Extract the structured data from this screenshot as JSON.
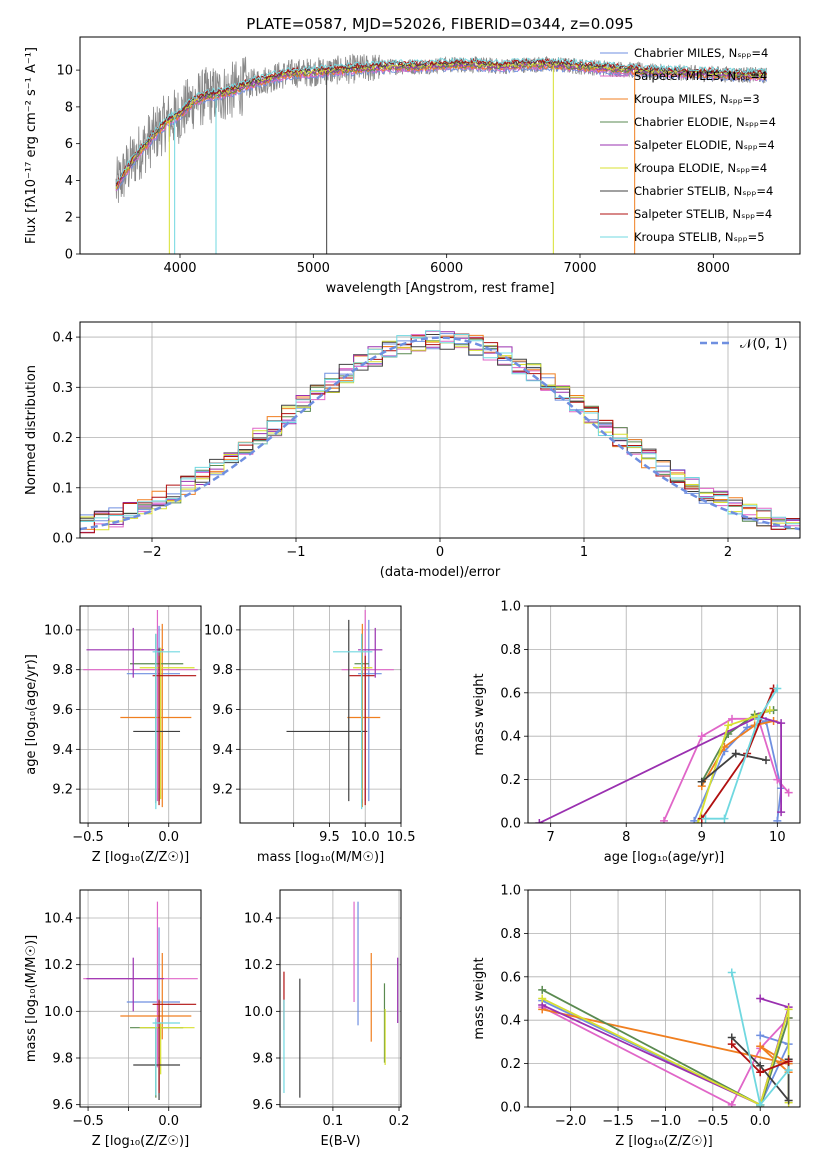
{
  "figure_title": "PLATE=0587, MJD=52026, FIBERID=0344, z=0.095",
  "colors": {
    "series": [
      "#6f8fe0",
      "#e066c8",
      "#f07f20",
      "#5a8a50",
      "#9a30b0",
      "#d8e030",
      "#404040",
      "#b01010",
      "#70d8e0"
    ],
    "normal_curve": "#6f8fe0",
    "grid": "#b0b0b0"
  },
  "chart_data": [
    {
      "id": "spectrum",
      "type": "line",
      "title": "PLATE=0587, MJD=52026, FIBERID=0344, z=0.095",
      "xlabel": "wavelength [Angstrom, rest frame]",
      "ylabel": "Flux [fλ10⁻¹⁷ erg cm⁻² s⁻¹ A⁻¹]",
      "xlim": [
        3250,
        8650
      ],
      "ylim": [
        0,
        11.8
      ],
      "xticks": [
        4000,
        5000,
        6000,
        7000,
        8000
      ],
      "yticks": [
        0,
        2,
        4,
        6,
        8,
        10
      ],
      "grid": false,
      "legend_position": "right",
      "legend": [
        "Chabrier MILES, Nₛₚₚ=4",
        "Salpeter MILES, Nₛₚₚ=4",
        "Kroupa MILES, Nₛₚₚ=3",
        "Chabrier ELODIE, Nₛₚₚ=4",
        "Salpeter ELODIE, Nₛₚₚ=4",
        "Kroupa ELODIE, Nₛₚₚ=4",
        "Chabrier STELIB, Nₛₚₚ=4",
        "Salpeter STELIB, Nₛₚₚ=4",
        "Kroupa STELIB, Nₛₚₚ=5"
      ],
      "data_range": [
        3520,
        8400
      ],
      "model_envelope": {
        "x": [
          3520,
          3600,
          3700,
          3800,
          3900,
          4000,
          4100,
          4200,
          4300,
          4400,
          4500,
          4600,
          4800,
          5000,
          5200,
          5400,
          5600,
          5800,
          6000,
          6200,
          6400,
          6600,
          6800,
          7000,
          7200,
          7400,
          7600,
          7800,
          8000,
          8200,
          8400
        ],
        "y": [
          3.6,
          4.6,
          5.6,
          6.4,
          7.2,
          7.6,
          8.3,
          8.6,
          8.7,
          8.9,
          9.2,
          9.4,
          9.8,
          9.9,
          10.0,
          10.1,
          10.2,
          10.2,
          10.3,
          10.3,
          10.2,
          10.3,
          10.3,
          10.2,
          10.1,
          10.0,
          9.9,
          9.85,
          9.8,
          9.75,
          9.7
        ]
      },
      "sharp_drops": [
        {
          "series": 8,
          "x": 3960
        },
        {
          "series": 5,
          "x": 3920
        },
        {
          "series": 8,
          "x": 4270
        },
        {
          "series": 6,
          "x": 5100
        },
        {
          "series": 5,
          "x": 6800
        },
        {
          "series": 2,
          "x": 7410
        }
      ]
    },
    {
      "id": "residuals",
      "type": "step",
      "xlabel": "(data-model)/error",
      "ylabel": "Normed distribution",
      "xlim": [
        -2.5,
        2.5
      ],
      "ylim": [
        0,
        0.43
      ],
      "xticks": [
        -2,
        -1,
        0,
        1,
        2
      ],
      "yticks": [
        0.0,
        0.1,
        0.2,
        0.3,
        0.4
      ],
      "grid": true,
      "legend_position": "top-right",
      "legend": [
        "𝒩(0, 1)"
      ],
      "bin_width": 0.1,
      "bin_start": -2.5,
      "reference_normal": {
        "mean": 0,
        "sigma": 1
      }
    },
    {
      "id": "age_vs_Z",
      "type": "errorbar",
      "xlabel": "Z [log₁₀(Z/Z☉)]",
      "ylabel": "age  [log₁₀(age/yr)]",
      "xlim": [
        -0.55,
        0.2
      ],
      "ylim": [
        9.03,
        10.12
      ],
      "xticks": [
        -0.5,
        -0.25,
        0.0
      ],
      "xticklabels": [
        "−0.5",
        "",
        "0.0"
      ],
      "yticks": [
        9.2,
        9.4,
        9.6,
        9.8,
        10.0
      ],
      "grid": true,
      "points": [
        {
          "series": 0,
          "x": -0.06,
          "y": 9.78,
          "xerr": [
            0.2,
            0.13
          ],
          "yerr": [
            0.64,
            0.24
          ]
        },
        {
          "series": 1,
          "x": -0.07,
          "y": 9.8,
          "xerr": [
            0.46,
            0.25
          ],
          "yerr": [
            0.66,
            0.3
          ]
        },
        {
          "series": 2,
          "x": -0.04,
          "y": 9.56,
          "xerr": [
            0.26,
            0.18
          ],
          "yerr": [
            0.45,
            0.47
          ]
        },
        {
          "series": 3,
          "x": -0.08,
          "y": 9.83,
          "xerr": [
            0.16,
            0.17
          ],
          "yerr": [
            0.7,
            0.15
          ]
        },
        {
          "series": 4,
          "x": -0.22,
          "y": 9.9,
          "xerr": [
            0.29,
            0.19
          ],
          "yerr": [
            0.14,
            0.11
          ]
        },
        {
          "series": 5,
          "x": -0.05,
          "y": 9.81,
          "xerr": [
            0.13,
            0.21
          ],
          "yerr": [
            0.66,
            0.1
          ]
        },
        {
          "series": 6,
          "x": -0.06,
          "y": 9.49,
          "xerr": [
            0.16,
            0.13
          ],
          "yerr": [
            0.35,
            0.42
          ]
        },
        {
          "series": 7,
          "x": -0.06,
          "y": 9.77,
          "xerr": [
            0.04,
            0.23
          ],
          "yerr": [
            0.65,
            0.1
          ]
        },
        {
          "series": 8,
          "x": -0.08,
          "y": 9.89,
          "xerr": [
            0.02,
            0.15
          ],
          "yerr": [
            0.79,
            0.09
          ]
        }
      ]
    },
    {
      "id": "age_vs_mass",
      "type": "errorbar",
      "xlabel": "mass [log₁₀(M/M☉)]",
      "ylabel": "",
      "xlim": [
        8.25,
        10.5
      ],
      "ylim": [
        9.03,
        10.12
      ],
      "xticks": [
        9.0,
        9.5,
        10.0,
        10.5
      ],
      "xticklabels": [
        "",
        "9.5",
        "10.0",
        "10.5"
      ],
      "yticks": [
        9.2,
        9.4,
        9.6,
        9.8,
        10.0
      ],
      "grid": true,
      "points": [
        {
          "series": 0,
          "x": 10.05,
          "y": 9.78,
          "xerr": [
            0.15,
            0.18
          ],
          "yerr": [
            0.64,
            0.27
          ]
        },
        {
          "series": 1,
          "x": 10.0,
          "y": 9.8,
          "xerr": [
            0.33,
            0.4
          ],
          "yerr": [
            0.66,
            0.3
          ]
        },
        {
          "series": 2,
          "x": 9.96,
          "y": 9.56,
          "xerr": [
            0.21,
            0.25
          ],
          "yerr": [
            0.45,
            0.47
          ]
        },
        {
          "series": 3,
          "x": 9.95,
          "y": 9.83,
          "xerr": [
            0.1,
            0.1
          ],
          "yerr": [
            0.7,
            0.15
          ]
        },
        {
          "series": 4,
          "x": 10.14,
          "y": 9.9,
          "xerr": [
            0.24,
            0.1
          ],
          "yerr": [
            0.14,
            0.11
          ]
        },
        {
          "series": 5,
          "x": 9.95,
          "y": 9.81,
          "xerr": [
            0.12,
            0.15
          ],
          "yerr": [
            0.66,
            0.1
          ]
        },
        {
          "series": 6,
          "x": 9.77,
          "y": 9.49,
          "xerr": [
            0.87,
            0.26
          ],
          "yerr": [
            0.35,
            0.56
          ]
        },
        {
          "series": 7,
          "x": 10.0,
          "y": 9.77,
          "xerr": [
            0.22,
            0.13
          ],
          "yerr": [
            0.65,
            0.1
          ]
        },
        {
          "series": 8,
          "x": 9.95,
          "y": 9.89,
          "xerr": [
            0.4,
            0.15
          ],
          "yerr": [
            0.79,
            0.09
          ]
        }
      ]
    },
    {
      "id": "weight_vs_age",
      "type": "line",
      "xlabel": "age  [log₁₀(age/yr)]",
      "ylabel": "mass weight",
      "xlim": [
        6.7,
        10.3
      ],
      "ylim": [
        0,
        1
      ],
      "xticks": [
        7,
        8,
        9,
        10
      ],
      "yticks": [
        0.0,
        0.2,
        0.4,
        0.6,
        0.8,
        1.0
      ],
      "grid": true,
      "series": [
        {
          "series": 0,
          "x": [
            8.9,
            9.3,
            9.6,
            9.85,
            10.05,
            10.0
          ],
          "y": [
            0.01,
            0.33,
            0.44,
            0.47,
            0.16,
            0.01
          ]
        },
        {
          "series": 1,
          "x": [
            8.5,
            9.0,
            9.4,
            9.75,
            10.0,
            10.15
          ],
          "y": [
            0.01,
            0.4,
            0.48,
            0.48,
            0.2,
            0.14
          ]
        },
        {
          "series": 2,
          "x": [
            9.0,
            9.3,
            9.7,
            9.95
          ],
          "y": [
            0.17,
            0.35,
            0.45,
            0.47
          ]
        },
        {
          "series": 3,
          "x": [
            9.0,
            9.35,
            9.7,
            9.95
          ],
          "y": [
            0.19,
            0.41,
            0.5,
            0.52
          ]
        },
        {
          "series": 4,
          "x": [
            6.85,
            9.75,
            10.05,
            10.05
          ],
          "y": [
            0.0,
            0.49,
            0.46,
            0.05
          ]
        },
        {
          "series": 5,
          "x": [
            8.95,
            9.35,
            9.7,
            9.9
          ],
          "y": [
            0.0,
            0.45,
            0.49,
            0.52
          ]
        },
        {
          "series": 6,
          "x": [
            9.0,
            9.45,
            9.85
          ],
          "y": [
            0.19,
            0.32,
            0.29
          ]
        },
        {
          "series": 7,
          "x": [
            9.0,
            9.6,
            9.95
          ],
          "y": [
            0.02,
            0.32,
            0.62
          ]
        },
        {
          "series": 8,
          "x": [
            9.05,
            9.3,
            9.75,
            10.0
          ],
          "y": [
            0.02,
            0.02,
            0.48,
            0.62
          ]
        }
      ]
    },
    {
      "id": "mass_vs_Z",
      "type": "errorbar",
      "xlabel": "Z [log₁₀(Z/Z☉)]",
      "ylabel": "mass [log₁₀(M/M☉)]",
      "xlim": [
        -0.55,
        0.2
      ],
      "ylim": [
        9.59,
        10.52
      ],
      "xticks": [
        -0.5,
        -0.25,
        0.0
      ],
      "xticklabels": [
        "−0.5",
        "",
        "0.0"
      ],
      "yticks": [
        9.6,
        9.8,
        10.0,
        10.2,
        10.4
      ],
      "grid": true,
      "points": [
        {
          "series": 0,
          "x": -0.06,
          "y": 10.04,
          "xerr": [
            0.2,
            0.13
          ],
          "yerr": [
            0.38,
            0.32
          ]
        },
        {
          "series": 1,
          "x": -0.07,
          "y": 10.14,
          "xerr": [
            0.46,
            0.25
          ],
          "yerr": [
            0.38,
            0.33
          ]
        },
        {
          "series": 2,
          "x": -0.04,
          "y": 9.98,
          "xerr": [
            0.26,
            0.18
          ],
          "yerr": [
            0.1,
            0.27
          ]
        },
        {
          "series": 3,
          "x": -0.08,
          "y": 9.93,
          "xerr": [
            0.16,
            0.17
          ],
          "yerr": [
            0.3,
            0.0
          ]
        },
        {
          "series": 4,
          "x": -0.22,
          "y": 10.14,
          "xerr": [
            0.29,
            0.19
          ],
          "yerr": [
            0.14,
            0.09
          ]
        },
        {
          "series": 5,
          "x": -0.05,
          "y": 9.93,
          "xerr": [
            0.13,
            0.21
          ],
          "yerr": [
            0.2,
            0.02
          ]
        },
        {
          "series": 6,
          "x": -0.06,
          "y": 9.77,
          "xerr": [
            0.16,
            0.13
          ],
          "yerr": [
            0.15,
            0.26
          ]
        },
        {
          "series": 7,
          "x": -0.06,
          "y": 10.03,
          "xerr": [
            0.04,
            0.23
          ],
          "yerr": [
            0.38,
            0.02
          ]
        },
        {
          "series": 8,
          "x": -0.08,
          "y": 9.95,
          "xerr": [
            0.02,
            0.15
          ],
          "yerr": [
            0.31,
            0.02
          ]
        }
      ]
    },
    {
      "id": "mass_vs_EBV",
      "type": "errorbar",
      "xlabel": "E(B-V)",
      "ylabel": "",
      "xlim": [
        0.02,
        0.203
      ],
      "ylim": [
        9.59,
        10.52
      ],
      "xticks": [
        0.1,
        0.2
      ],
      "yticks": [
        9.6,
        9.8,
        10.0,
        10.2,
        10.4
      ],
      "grid": true,
      "points": [
        {
          "series": 0,
          "x": 0.138,
          "y": 10.1,
          "yerr": [
            0.16,
            0.37
          ]
        },
        {
          "series": 1,
          "x": 0.132,
          "y": 10.21,
          "yerr": [
            0.17,
            0.26
          ]
        },
        {
          "series": 2,
          "x": 0.158,
          "y": 10.06,
          "yerr": [
            0.19,
            0.19
          ]
        },
        {
          "series": 3,
          "x": 0.178,
          "y": 9.96,
          "yerr": [
            0.18,
            0.16
          ]
        },
        {
          "series": 4,
          "x": 0.198,
          "y": 10.09,
          "yerr": [
            0.14,
            0.14
          ]
        },
        {
          "series": 5,
          "x": 0.179,
          "y": 9.88,
          "yerr": [
            0.11,
            0.13
          ]
        },
        {
          "series": 6,
          "x": 0.05,
          "y": 9.88,
          "yerr": [
            0.25,
            0.26
          ]
        },
        {
          "series": 7,
          "x": 0.026,
          "y": 10.05,
          "yerr": [
            0.13,
            0.12
          ]
        },
        {
          "series": 8,
          "x": 0.026,
          "y": 9.85,
          "yerr": [
            0.2,
            0.2
          ]
        }
      ]
    },
    {
      "id": "weight_vs_Z",
      "type": "line",
      "xlabel": "Z [log₁₀(Z/Z☉)]",
      "ylabel": "mass weight",
      "xlim": [
        -2.45,
        0.42
      ],
      "ylim": [
        0,
        1
      ],
      "xticks": [
        -2.0,
        -1.5,
        -1.0,
        -0.5,
        0.0
      ],
      "yticks": [
        0.0,
        0.2,
        0.4,
        0.6,
        0.8,
        1.0
      ],
      "grid": true,
      "series": [
        {
          "series": 0,
          "x": [
            -2.3,
            0.0,
            0.3,
            0.0
          ],
          "y": [
            0.49,
            0.01,
            0.29,
            0.33
          ]
        },
        {
          "series": 1,
          "x": [
            -2.3,
            -0.3,
            0.0,
            0.3
          ],
          "y": [
            0.46,
            0.01,
            0.27,
            0.41
          ]
        },
        {
          "series": 2,
          "x": [
            -2.3,
            0.3,
            0.0,
            0.3
          ],
          "y": [
            0.45,
            0.2,
            0.28,
            0.16
          ]
        },
        {
          "series": 3,
          "x": [
            -2.3,
            0.0,
            0.3,
            0.0
          ],
          "y": [
            0.54,
            0.01,
            0.41,
            0.0
          ]
        },
        {
          "series": 4,
          "x": [
            -2.3,
            0.0,
            0.3,
            0.0
          ],
          "y": [
            0.47,
            0.01,
            0.46,
            0.5
          ]
        },
        {
          "series": 5,
          "x": [
            -2.3,
            0.0,
            0.3,
            0.3
          ],
          "y": [
            0.5,
            0.01,
            0.45,
            0.02
          ]
        },
        {
          "series": 6,
          "x": [
            -0.3,
            0.0,
            0.3,
            0.3
          ],
          "y": [
            0.32,
            0.19,
            0.03,
            0.22
          ]
        },
        {
          "series": 7,
          "x": [
            -0.3,
            0.0,
            0.3
          ],
          "y": [
            0.29,
            0.16,
            0.21
          ]
        },
        {
          "series": 8,
          "x": [
            -0.3,
            0.0,
            0.3
          ],
          "y": [
            0.62,
            0.01,
            0.17
          ]
        }
      ]
    }
  ]
}
